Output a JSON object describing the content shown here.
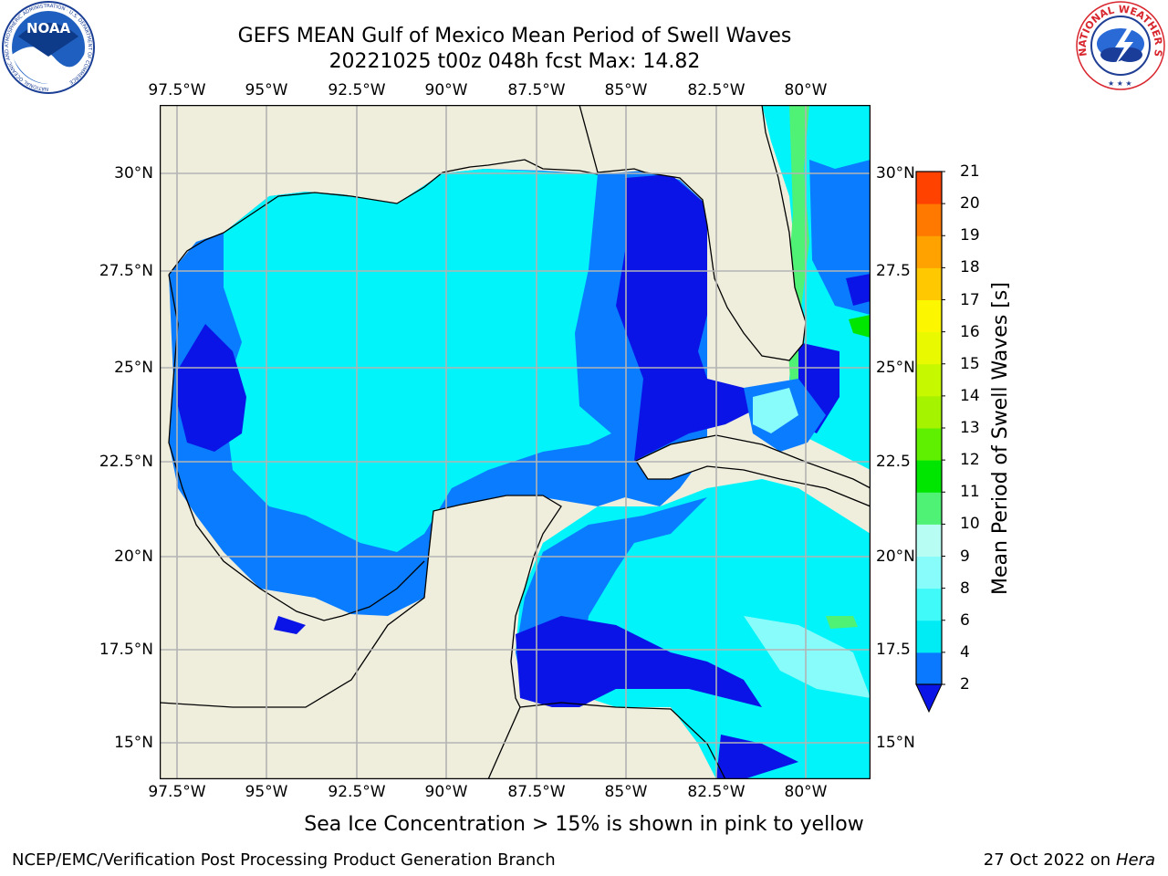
{
  "header": {
    "title_line1": "GEFS MEAN Gulf of Mexico Mean Period of Swell Waves",
    "title_line2": "20221025 t00z 048h fcst   Max: 14.82"
  },
  "logos": {
    "noaa": {
      "text": "NOAA",
      "ring_text": "NATIONAL OCEANIC AND ATMOSPHERIC ADMINISTRATION · U.S. DEPARTMENT OF COMMERCE"
    },
    "nws": {
      "ring_text": "NATIONAL WEATHER SERVICE"
    }
  },
  "map": {
    "lon_labels": [
      "97.5°W",
      "95°W",
      "92.5°W",
      "90°W",
      "87.5°W",
      "85°W",
      "82.5°W",
      "80°W"
    ],
    "lat_labels_left": [
      "30°N",
      "27.5°N",
      "25°N",
      "22.5°N",
      "20°N",
      "17.5°N",
      "15°N"
    ],
    "lat_labels_right": [
      "30°N",
      "27.5",
      "25°N",
      "22.5",
      "20°N",
      "17.5",
      "15°N"
    ],
    "colors": {
      "land": "#efeddc",
      "water_low": "#0a14e6",
      "water_mid": "#0a7cff",
      "water_cyan": "#00f4f9",
      "grid": "#b3b3b3"
    }
  },
  "colorbar": {
    "label": "Mean Period of Swell Waves [s]",
    "ticks": [
      "2",
      "4",
      "6",
      "8",
      "9",
      "10",
      "11",
      "12",
      "13",
      "14",
      "15",
      "16",
      "17",
      "18",
      "19",
      "20",
      "21"
    ],
    "colors": [
      "#0a78ff",
      "#00ecf5",
      "#40faf9",
      "#88fcfa",
      "#b8fdf3",
      "#50f275",
      "#00e600",
      "#5ef000",
      "#a6f300",
      "#c6f800",
      "#e9fa00",
      "#fcf600",
      "#ffc800",
      "#ffa200",
      "#ff7800",
      "#ff4200",
      "#fe0000"
    ],
    "extend_color": "#0a14e6"
  },
  "notes": {
    "sea_ice": "Sea Ice Concentration > 15% is shown in pink to yellow"
  },
  "footer": {
    "left": "NCEP/EMC/Verification Post Processing Product Generation Branch",
    "date": "27 Oct 2022 on ",
    "host": "Hera"
  }
}
